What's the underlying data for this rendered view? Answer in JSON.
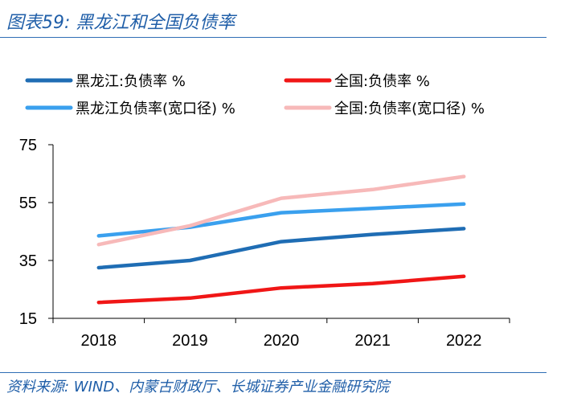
{
  "figure": {
    "title": "图表59:  黑龙江和全国负债率",
    "source": "资料来源:  WIND、内蒙古财政厅、长城证券产业金融研究院"
  },
  "chart_data": {
    "type": "line",
    "title": "",
    "xlabel": "",
    "ylabel": "",
    "categories": [
      "2018",
      "2019",
      "2020",
      "2021",
      "2022"
    ],
    "ylim": [
      15,
      75
    ],
    "yticks": [
      15,
      35,
      55,
      75
    ],
    "grid": false,
    "legend_position": "top",
    "series": [
      {
        "name": "黑龙江:负债率 %",
        "color": "#1f6db4",
        "values": [
          32.5,
          35,
          41.5,
          44,
          46
        ]
      },
      {
        "name": "全国:负债率 %",
        "color": "#f01616",
        "values": [
          20.5,
          22,
          25.5,
          27,
          29.5
        ]
      },
      {
        "name": "黑龙江负债率(宽口径) %",
        "color": "#3aa0ee",
        "values": [
          43.5,
          46.5,
          51.5,
          53,
          54.5
        ]
      },
      {
        "name": "全国:负债率(宽口径) %",
        "color": "#f7b9b9",
        "values": [
          40.5,
          47,
          56.5,
          59.5,
          64
        ]
      }
    ]
  }
}
